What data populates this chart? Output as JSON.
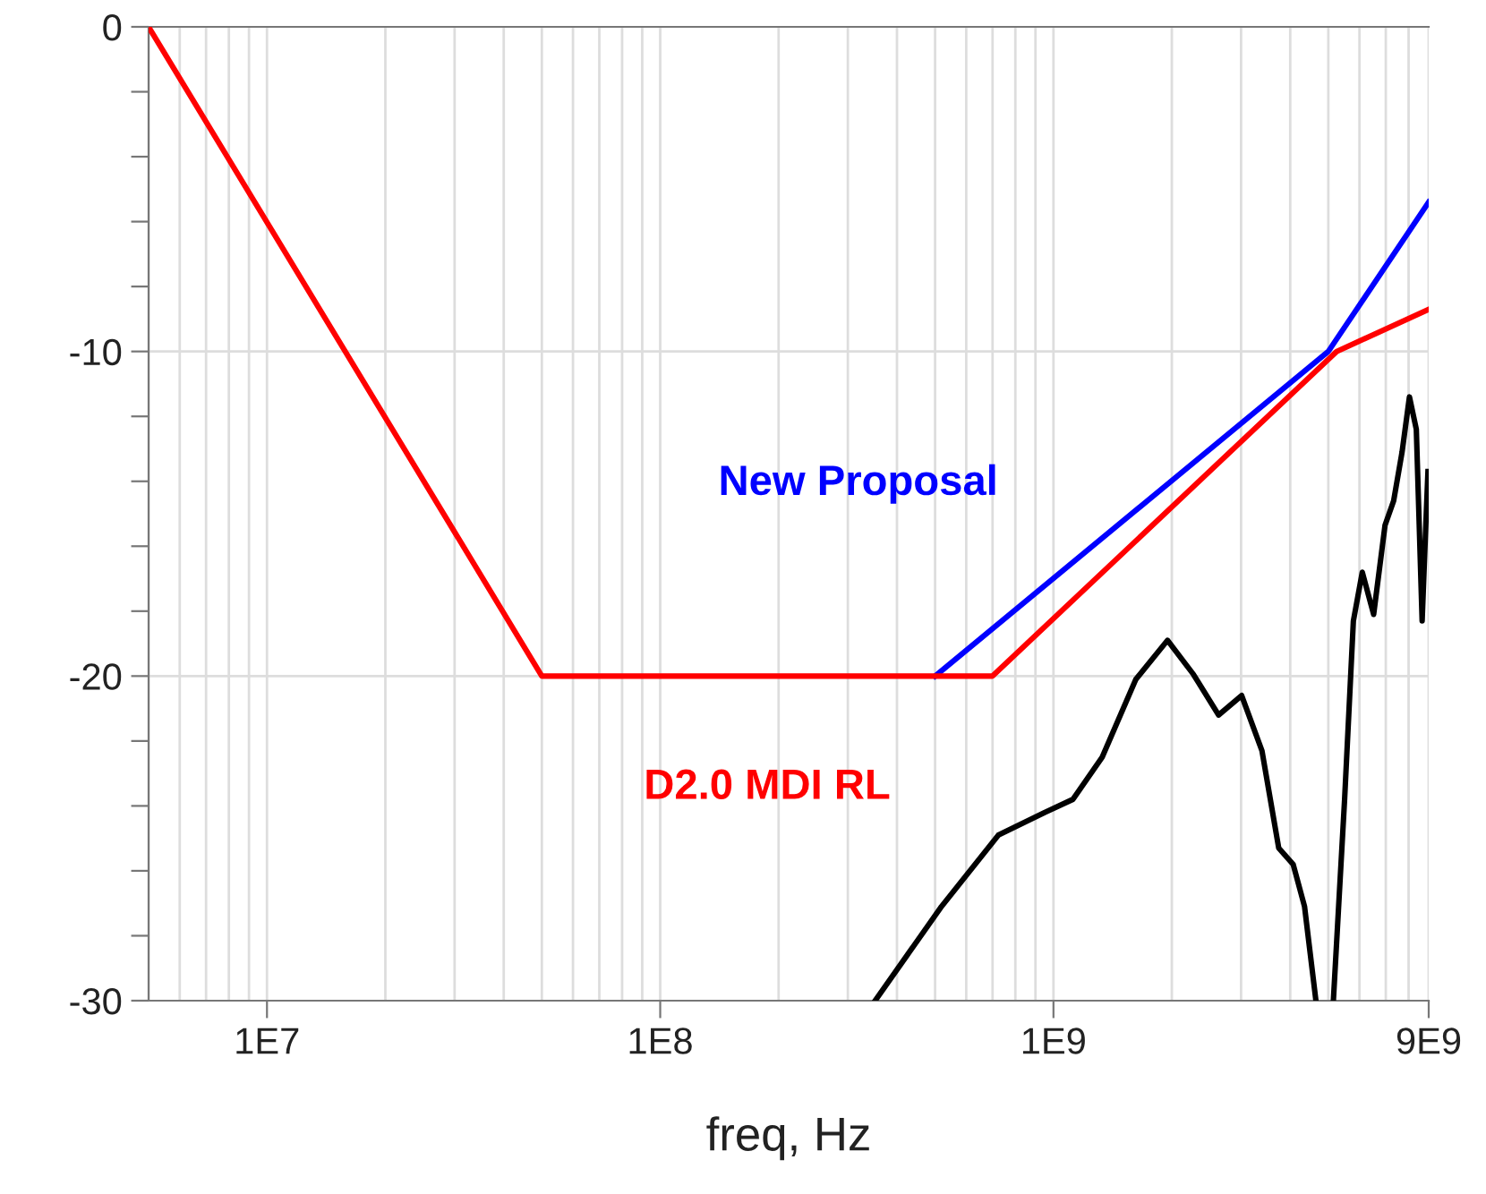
{
  "chart_data": {
    "type": "line",
    "xlabel": "freq, Hz",
    "log": "x",
    "grid": true,
    "legend": false,
    "xlim": [
      5000000.0,
      9000000000.0
    ],
    "xticks": [
      {
        "value": 10000000.0,
        "label": "1E7"
      },
      {
        "value": 100000000.0,
        "label": "1E8"
      },
      {
        "value": 1000000000.0,
        "label": "1E9"
      },
      {
        "value": 9000000000.0,
        "label": "9E9"
      }
    ],
    "ylim": [
      -30,
      0
    ],
    "yticks": [
      0,
      {
        "value": -2,
        "label": null
      },
      {
        "value": -4,
        "label": null
      },
      {
        "value": -6,
        "label": null
      },
      {
        "value": -8,
        "label": null
      },
      -10,
      {
        "value": -12,
        "label": null
      },
      {
        "value": -14,
        "label": null
      },
      {
        "value": -16,
        "label": null
      },
      {
        "value": -18,
        "label": null
      },
      -20,
      {
        "value": -22,
        "label": null
      },
      {
        "value": -24,
        "label": null
      },
      {
        "value": -26,
        "label": null
      },
      {
        "value": -28,
        "label": null
      },
      -30
    ],
    "series": [
      {
        "name": "New Proposal",
        "color": "#0000ff",
        "x": [
          500000000.0,
          5000000000.0,
          9000000000.0
        ],
        "values": [
          -20,
          -10,
          -5.4
        ]
      },
      {
        "name": "D2.0 MDI RL",
        "color": "#ff0000",
        "x": [
          5000000.0,
          50000000.0,
          700000000.0,
          5250000000.0,
          9000000000.0
        ],
        "values": [
          0,
          -20,
          -20,
          -10,
          -8.7
        ]
      },
      {
        "color": "#000000",
        "x": [
          352000000.0,
          519000000.0,
          724000000.0,
          950000000.0,
          1120000000.0,
          1330000000.0,
          1620000000.0,
          1950000000.0,
          2270000000.0,
          2630000000.0,
          3010000000.0,
          3390000000.0,
          3740000000.0,
          4070000000.0,
          4350000000.0,
          4650000000.0,
          4900000000.0,
          5150000000.0,
          5500000000.0,
          5790000000.0,
          6100000000.0,
          6520000000.0,
          6970000000.0,
          7330000000.0,
          7700000000.0,
          8040000000.0,
          8370000000.0,
          8660000000.0,
          8800000000.0,
          8960000000.0
        ],
        "values": [
          -30,
          -27.1,
          -24.9,
          -24.2,
          -23.8,
          -22.5,
          -20.1,
          -18.9,
          -19.95,
          -21.2,
          -20.6,
          -22.3,
          -25.3,
          -25.8,
          -27.1,
          -30,
          null,
          -30,
          -23.8,
          -18.3,
          -16.8,
          -18.1,
          -15.35,
          -14.6,
          -13.1,
          -11.4,
          -12.4,
          -18.3,
          -16.1,
          -13.7
        ]
      }
    ]
  }
}
